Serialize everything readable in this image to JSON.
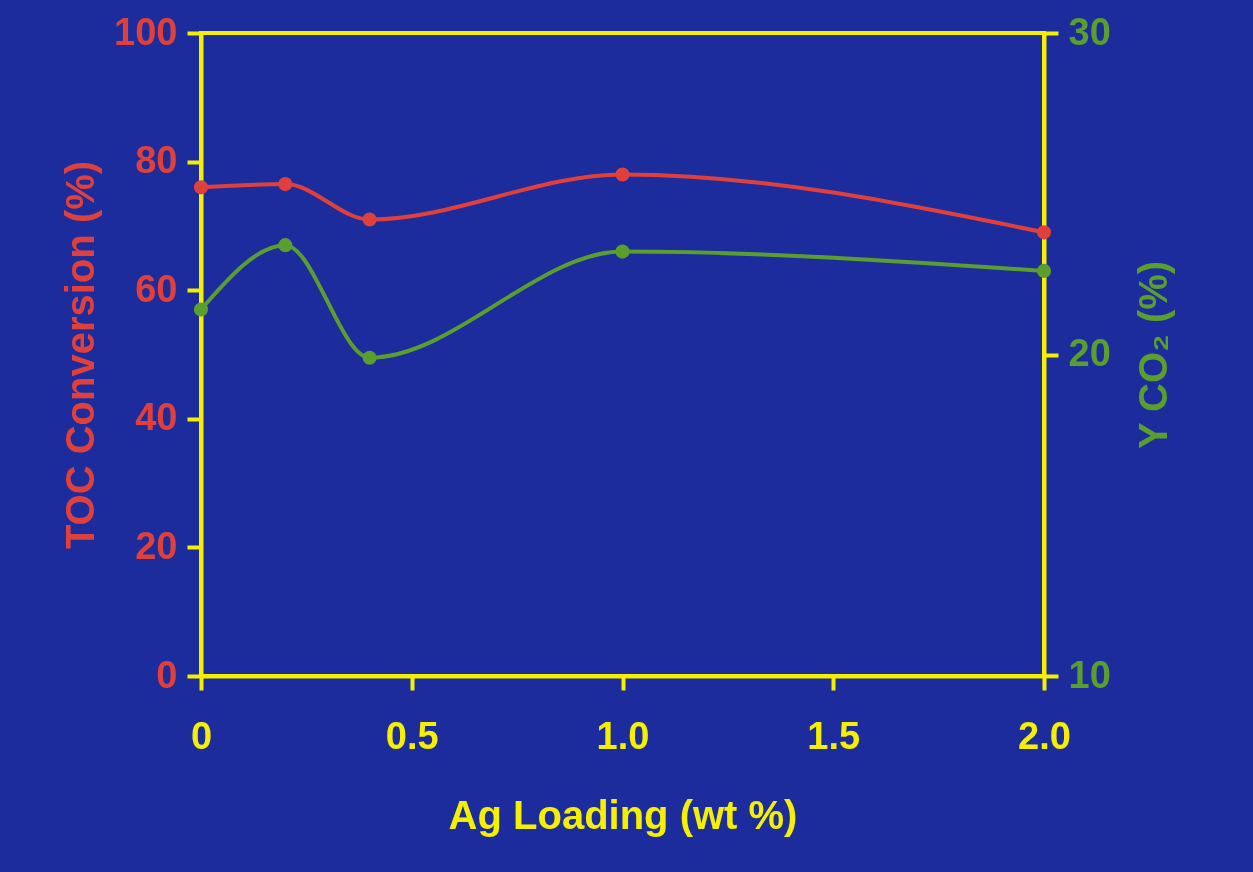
{
  "chart_data": {
    "type": "line",
    "xlabel": "Ag Loading (wt %)",
    "ylabel": "TOC Conversion (%)",
    "y2label": "Y CO₂ (%)",
    "x": [
      0,
      0.2,
      0.4,
      1.0,
      2.0
    ],
    "series": [
      {
        "color": "#e0403c",
        "values": [
          76,
          76.5,
          71,
          78,
          69
        ]
      },
      {
        "color": "#5a9e2e",
        "values": [
          21.4,
          23.4,
          19.9,
          23.2,
          22.6
        ],
        "axis": "y2"
      }
    ],
    "xlim": [
      0,
      2
    ],
    "xticks": [
      0,
      {
        "value": 0.5,
        "label": "0.5"
      },
      {
        "value": 1,
        "label": "1.0"
      },
      {
        "value": 1.5,
        "label": "1.5"
      },
      {
        "value": 2,
        "label": "2.0"
      }
    ],
    "ylim": [
      0,
      100
    ],
    "yticks": [
      0,
      20,
      40,
      60,
      80,
      100
    ],
    "y2lim": [
      10,
      30
    ],
    "y2ticks": [
      10,
      20,
      30
    ],
    "grid": false,
    "marker": "circle",
    "line_style": "solid"
  }
}
